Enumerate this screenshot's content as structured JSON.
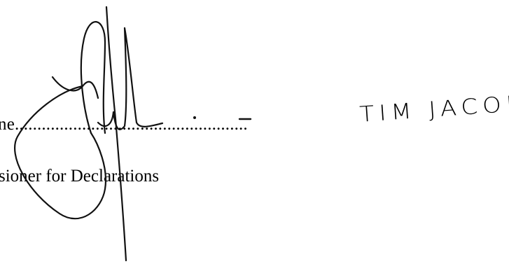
{
  "form": {
    "name_label_fragment": "ne",
    "dotted_leader": "....................................................",
    "role_label_fragment": "sioner for Declarations"
  },
  "handwriting": {
    "dash": "-",
    "name": "TIM JACOBSON"
  },
  "signature": {
    "description_icon": "handwritten-signature"
  }
}
